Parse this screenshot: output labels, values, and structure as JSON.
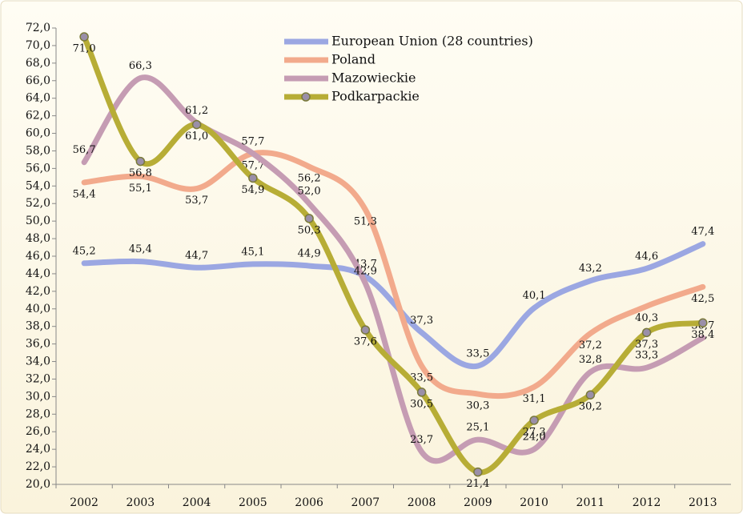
{
  "chart_data": {
    "type": "line",
    "categories": [
      "2002",
      "2003",
      "2004",
      "2005",
      "2006",
      "2007",
      "2008",
      "2009",
      "2010",
      "2011",
      "2012",
      "2013"
    ],
    "ylim": [
      20,
      72
    ],
    "yticks": [
      {
        "value": 20,
        "label": "20,0"
      },
      {
        "value": 22,
        "label": "22,0"
      },
      {
        "value": 24,
        "label": "24,0"
      },
      {
        "value": 26,
        "label": "26,0"
      },
      {
        "value": 28,
        "label": "28,0"
      },
      {
        "value": 30,
        "label": "30,0"
      },
      {
        "value": 32,
        "label": "32,0"
      },
      {
        "value": 34,
        "label": "34,0"
      },
      {
        "value": 36,
        "label": "36,0"
      },
      {
        "value": 38,
        "label": "38,0"
      },
      {
        "value": 40,
        "label": "40,0"
      },
      {
        "value": 42,
        "label": "42,0"
      },
      {
        "value": 44,
        "label": "44,0"
      },
      {
        "value": 46,
        "label": "46,0"
      },
      {
        "value": 48,
        "label": "48,0"
      },
      {
        "value": 50,
        "label": "50,0"
      },
      {
        "value": 52,
        "label": "52,0"
      },
      {
        "value": 54,
        "label": "54,0"
      },
      {
        "value": 56,
        "label": "56,0"
      },
      {
        "value": 58,
        "label": "58,0"
      },
      {
        "value": 60,
        "label": "60,0"
      },
      {
        "value": 62,
        "label": "62,0"
      },
      {
        "value": 64,
        "label": "64,0"
      },
      {
        "value": 66,
        "label": "66,0"
      },
      {
        "value": 68,
        "label": "68,0"
      },
      {
        "value": 70,
        "label": "70,0"
      },
      {
        "value": 72,
        "label": "72,0"
      }
    ],
    "grid": false,
    "legend": "top",
    "series": [
      {
        "name": "European Union (28 countries)",
        "color": "#9ba7e2",
        "values": [
          45.2,
          45.4,
          44.7,
          45.1,
          44.9,
          43.7,
          37.3,
          33.5,
          40.1,
          43.2,
          44.6,
          47.4
        ],
        "value_labels": [
          "45,2",
          "45,4",
          "44,7",
          "45,1",
          "44,9",
          "43,7",
          "37,3",
          "33,5",
          "40,1",
          "43,2",
          "44,6",
          "47,4"
        ]
      },
      {
        "name": "Poland",
        "color": "#f2aa8c",
        "values": [
          54.4,
          55.1,
          53.7,
          57.7,
          56.2,
          51.3,
          33.5,
          30.3,
          31.1,
          37.2,
          40.3,
          42.5
        ],
        "value_labels": [
          "54,4",
          "55,1",
          "53,7",
          "57,7",
          "56,2",
          "51,3",
          "33,5",
          "30,3",
          "31,1",
          "37,2",
          "40,3",
          "42,5"
        ]
      },
      {
        "name": "Mazowieckie",
        "color": "#c59cb3",
        "values": [
          56.7,
          66.3,
          61.2,
          57.7,
          52.0,
          42.9,
          23.7,
          25.1,
          24.0,
          32.8,
          33.3,
          36.7
        ],
        "value_labels": [
          "56,7",
          "66,3",
          "61,2",
          "57,7",
          "52,0",
          "42,9",
          "23,7",
          "25,1",
          "24,0",
          "32,8",
          "33,3",
          "36,7"
        ]
      },
      {
        "name": "Podkarpackie",
        "color": "#b7ad36",
        "marker": "circle",
        "values": [
          71.0,
          56.8,
          61.0,
          54.9,
          50.3,
          37.6,
          30.5,
          21.4,
          27.3,
          30.2,
          37.3,
          38.4
        ],
        "value_labels": [
          "71,0",
          "56,8",
          "61,0",
          "54,9",
          "50,3",
          "37,6",
          "30,5",
          "21,4",
          "27,3",
          "30,2",
          "37,3",
          "38,4"
        ]
      }
    ]
  }
}
